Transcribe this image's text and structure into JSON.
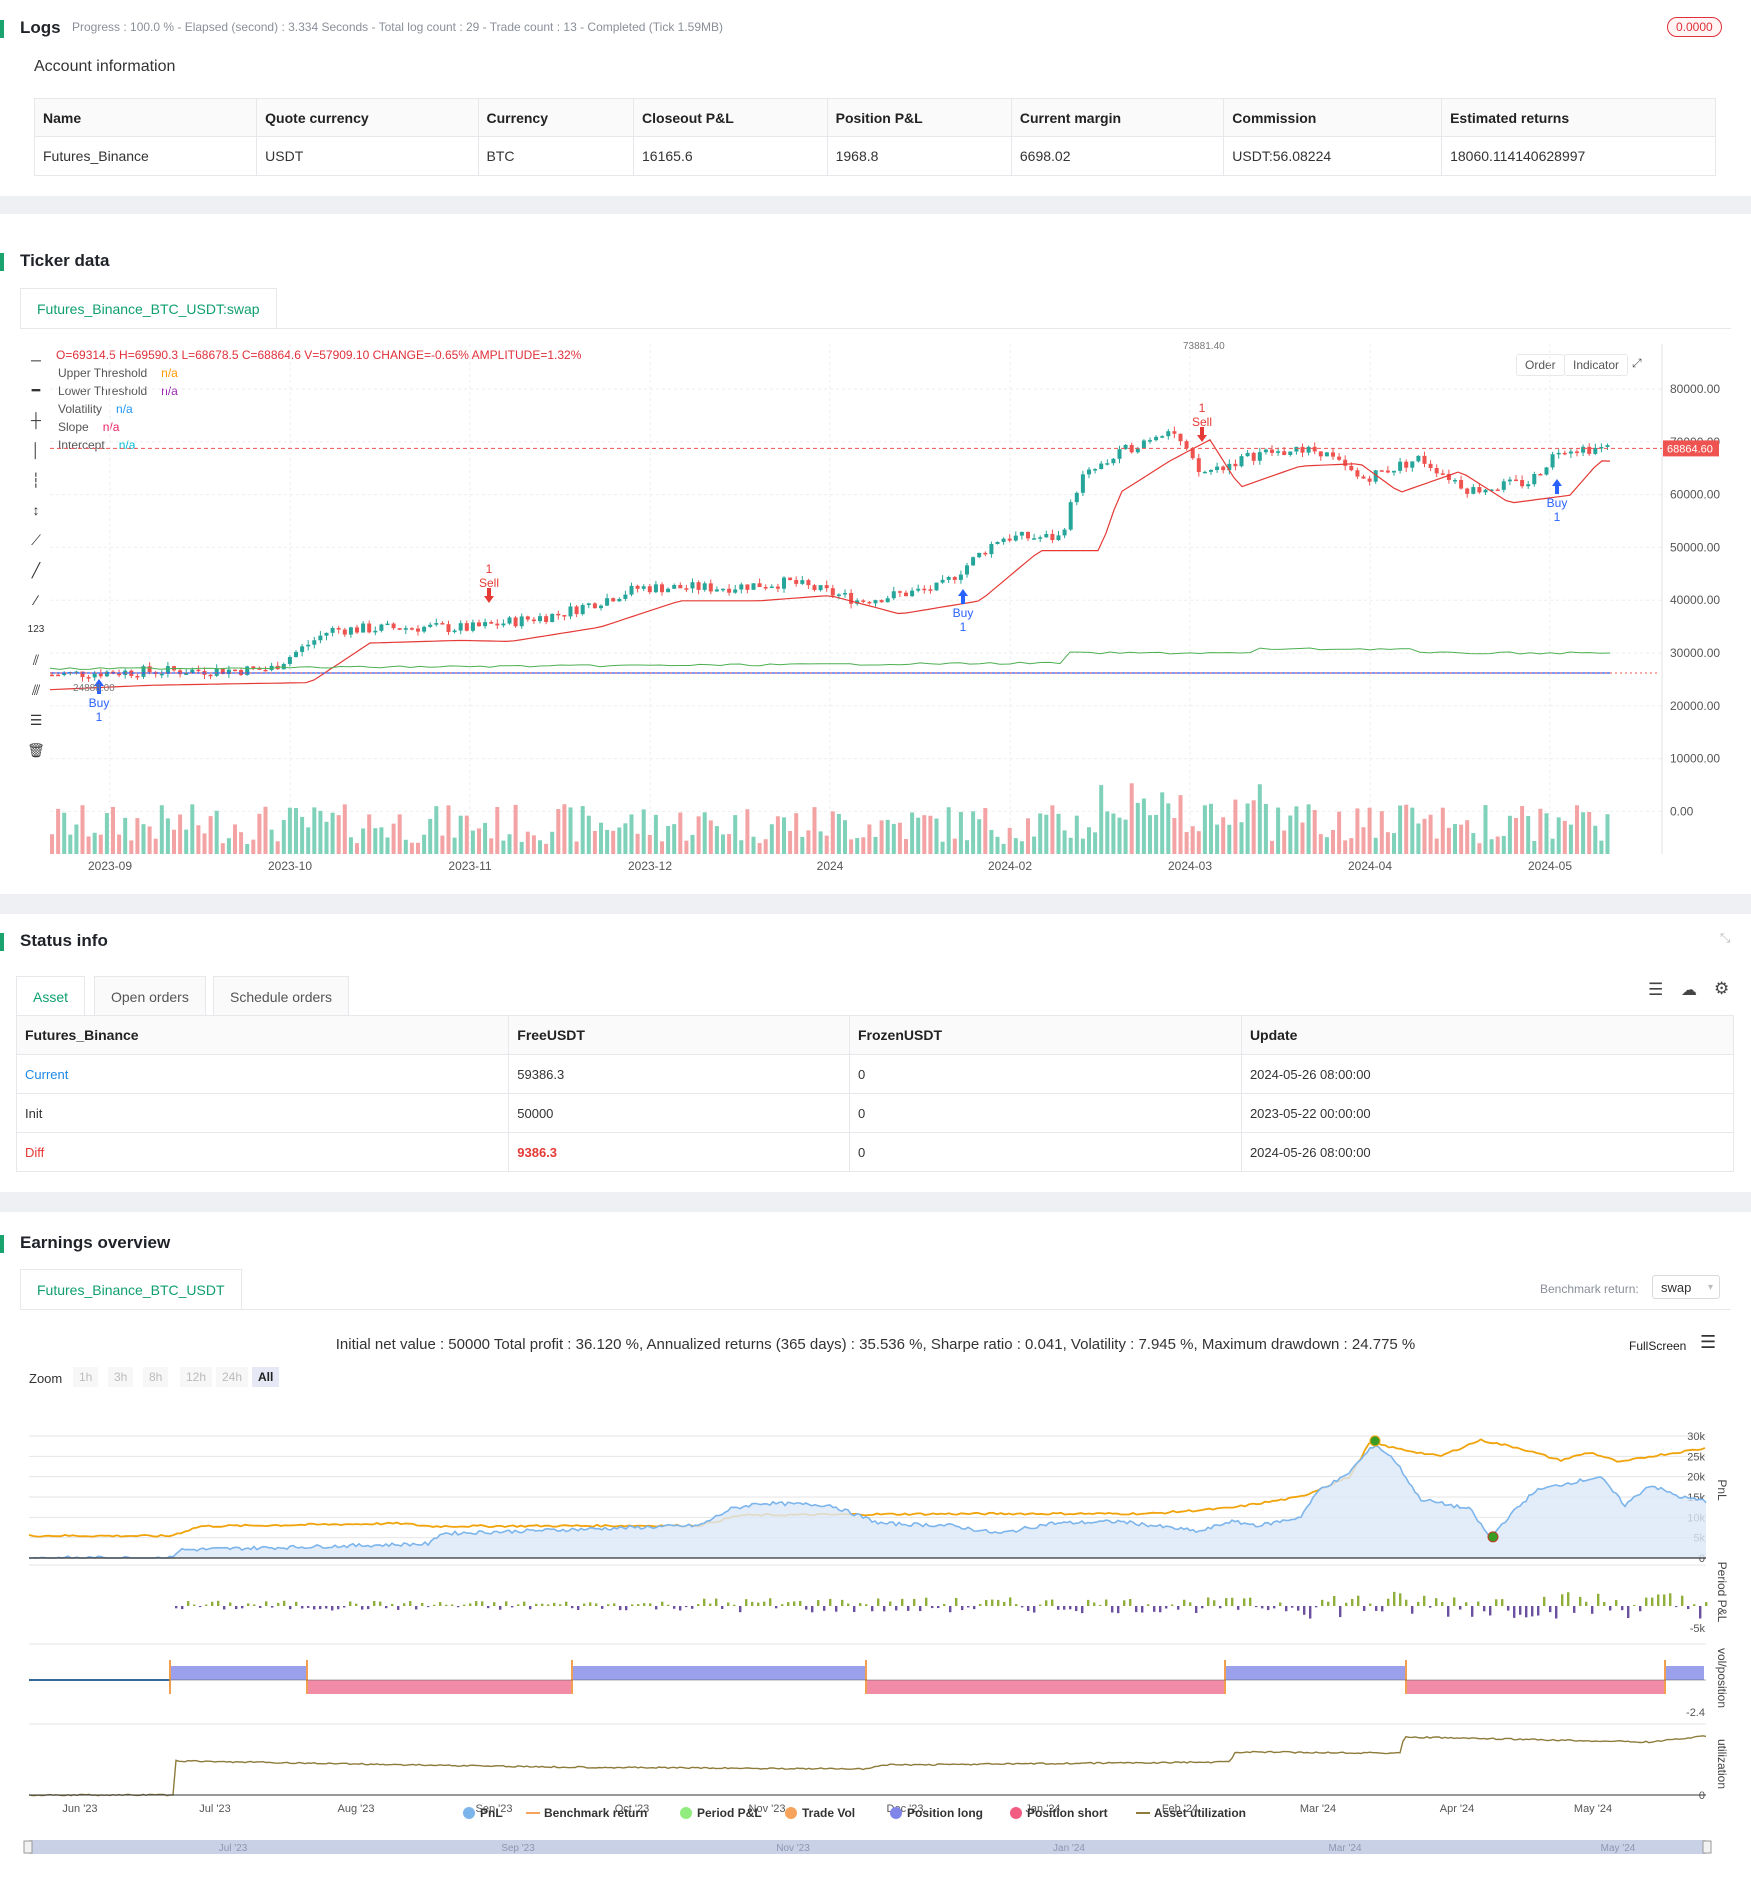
{
  "logs": {
    "title": "Logs",
    "progress_text": "Progress : 100.0 % - Elapsed (second) : 3.334  Seconds - Total log count : 29 - Trade count : 13 - Completed (Tick 1.59MB)",
    "badge": "0.0000"
  },
  "account": {
    "title": "Account information",
    "headers": [
      "Name",
      "Quote currency",
      "Currency",
      "Closeout P&L",
      "Position P&L",
      "Current margin",
      "Commission",
      "Estimated returns"
    ],
    "row": [
      "Futures_Binance",
      "USDT",
      "BTC",
      "16165.6",
      "1968.8",
      "6698.02",
      "USDT:56.08224",
      "18060.114140628997"
    ]
  },
  "ticker": {
    "title": "Ticker data",
    "tab": "Futures_Binance_BTC_USDT:swap",
    "ohlc_text": "O=69314.5 H=69590.3 L=68678.5 C=68864.6 V=57909.10 CHANGE=-0.65% AMPLITUDE=1.32%",
    "legend": [
      {
        "name": "Upper Threshold",
        "value": "n/a",
        "color": "#ff9800"
      },
      {
        "name": "Lower Threshold",
        "value": "n/a",
        "color": "#9c27b0"
      },
      {
        "name": "Volatility",
        "value": "n/a",
        "color": "#2196f3"
      },
      {
        "name": "Slope",
        "value": "n/a",
        "color": "#e91e63"
      },
      {
        "name": "Intercept",
        "value": "n/a",
        "color": "#00bcd4"
      }
    ],
    "buttons": {
      "order": "Order",
      "indicator": "Indicator"
    },
    "y_ticks": [
      "80000.00",
      "70000.00",
      "60000.00",
      "50000.00",
      "40000.00",
      "30000.00",
      "20000.00",
      "10000.00",
      "0.00"
    ],
    "x_ticks": [
      "2023-09",
      "2023-10",
      "2023-11",
      "2023-12",
      "2024",
      "2024-02",
      "2024-03",
      "2024-04",
      "2024-05"
    ],
    "price_tag": "68864.60",
    "marker_labels": {
      "buy": "Buy",
      "sell": "Sell",
      "qty": "1",
      "low_price": "24888.00",
      "high_price": "73881.40"
    }
  },
  "status": {
    "title": "Status info",
    "tabs": [
      "Asset",
      "Open orders",
      "Schedule orders"
    ],
    "headers": [
      "Futures_Binance",
      "FreeUSDT",
      "FrozenUSDT",
      "Update"
    ],
    "rows": [
      [
        "Current",
        "59386.3",
        "0",
        "2024-05-26 08:00:00"
      ],
      [
        "Init",
        "50000",
        "0",
        "2023-05-22 00:00:00"
      ],
      [
        "Diff",
        "9386.3",
        "0",
        "2024-05-26 08:00:00"
      ]
    ]
  },
  "earnings": {
    "title": "Earnings overview",
    "tab": "Futures_Binance_BTC_USDT",
    "benchmark_label": "Benchmark return:",
    "benchmark_value": "swap",
    "summary": "Initial net value : 50000 Total profit : 36.120 %, Annualized returns (365 days) : 35.536 %, Sharpe ratio : 0.041, Volatility : 7.945 %, Maximum drawdown : 24.775 %",
    "fullscreen": "FullScreen",
    "zoom_label": "Zoom",
    "zoom_options": [
      "1h",
      "3h",
      "8h",
      "12h",
      "24h",
      "All"
    ],
    "pnl_ticks": [
      "30k",
      "25k",
      "20k",
      "15k",
      "10k",
      "5k",
      "0"
    ],
    "period_tick": "-5k",
    "pos_tick": "-2.4",
    "util_tick": "0",
    "axis_labels": [
      "PnL",
      "Period P&L",
      "vol/position",
      "utilization"
    ],
    "x_ticks": [
      "Jun '23",
      "Jul '23",
      "Aug '23",
      "Sep '23",
      "Oct '23",
      "Nov '23",
      "Dec '23",
      "Jan '24",
      "Feb '24",
      "Mar '24",
      "Apr '24",
      "May '24"
    ],
    "nav_ticks": [
      "Jul '23",
      "Sep '23",
      "Nov '23",
      "Jan '24",
      "Mar '24",
      "May '24"
    ],
    "legend": [
      {
        "name": "PnL",
        "color": "#7cb5ec"
      },
      {
        "name": "Benchmark return",
        "color": "#f7a35c"
      },
      {
        "name": "Period P&L",
        "color": "#90ed7d"
      },
      {
        "name": "Trade Vol",
        "color": "#f7a35c"
      },
      {
        "name": "Position long",
        "color": "#8085e9"
      },
      {
        "name": "Position short",
        "color": "#f15c80"
      },
      {
        "name": "Asset utilization",
        "color": "#8d7b3a"
      }
    ]
  }
}
